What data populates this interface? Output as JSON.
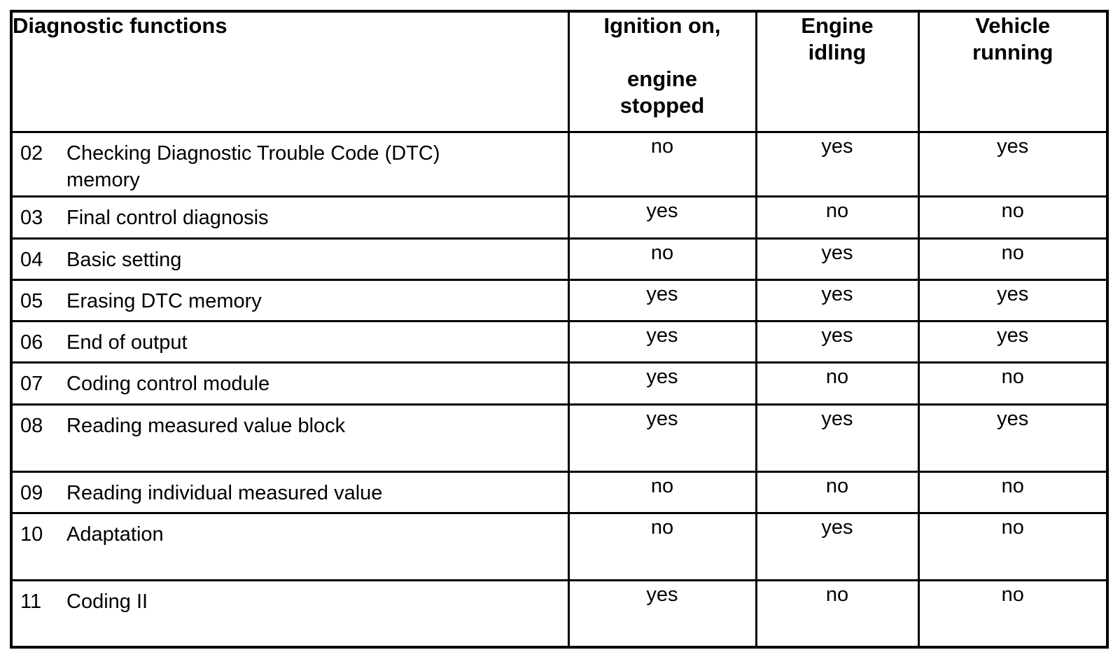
{
  "table": {
    "border_color": "#000000",
    "text_color": "#000000",
    "background_color": "#ffffff",
    "header": {
      "functions": "Diagnostic functions",
      "col1": "Ignition on,\n\nengine\nstopped",
      "col2": "Engine\nidling",
      "col3": "Vehicle\nrunning"
    },
    "rows": [
      {
        "num": "02",
        "desc": "Checking Diagnostic Trouble Code (DTC)\nmemory",
        "v1": "no",
        "v2": "yes",
        "v3": "yes"
      },
      {
        "num": "03",
        "desc": "Final control diagnosis",
        "v1": "yes",
        "v2": "no",
        "v3": "no"
      },
      {
        "num": "04",
        "desc": "Basic setting",
        "v1": "no",
        "v2": "yes",
        "v3": "no"
      },
      {
        "num": "05",
        "desc": "Erasing DTC memory",
        "v1": "yes",
        "v2": "yes",
        "v3": "yes"
      },
      {
        "num": "06",
        "desc": "End of output",
        "v1": "yes",
        "v2": "yes",
        "v3": "yes"
      },
      {
        "num": "07",
        "desc": "Coding control module",
        "v1": "yes",
        "v2": "no",
        "v3": "no"
      },
      {
        "num": "08",
        "desc": "Reading measured value block",
        "v1": "yes",
        "v2": "yes",
        "v3": "yes"
      },
      {
        "num": "09",
        "desc": "Reading individual measured value",
        "v1": "no",
        "v2": "no",
        "v3": "no"
      },
      {
        "num": "10",
        "desc": "Adaptation",
        "v1": "no",
        "v2": "yes",
        "v3": "no"
      },
      {
        "num": "11",
        "desc": "Coding II",
        "v1": "yes",
        "v2": "no",
        "v3": "no"
      }
    ]
  }
}
